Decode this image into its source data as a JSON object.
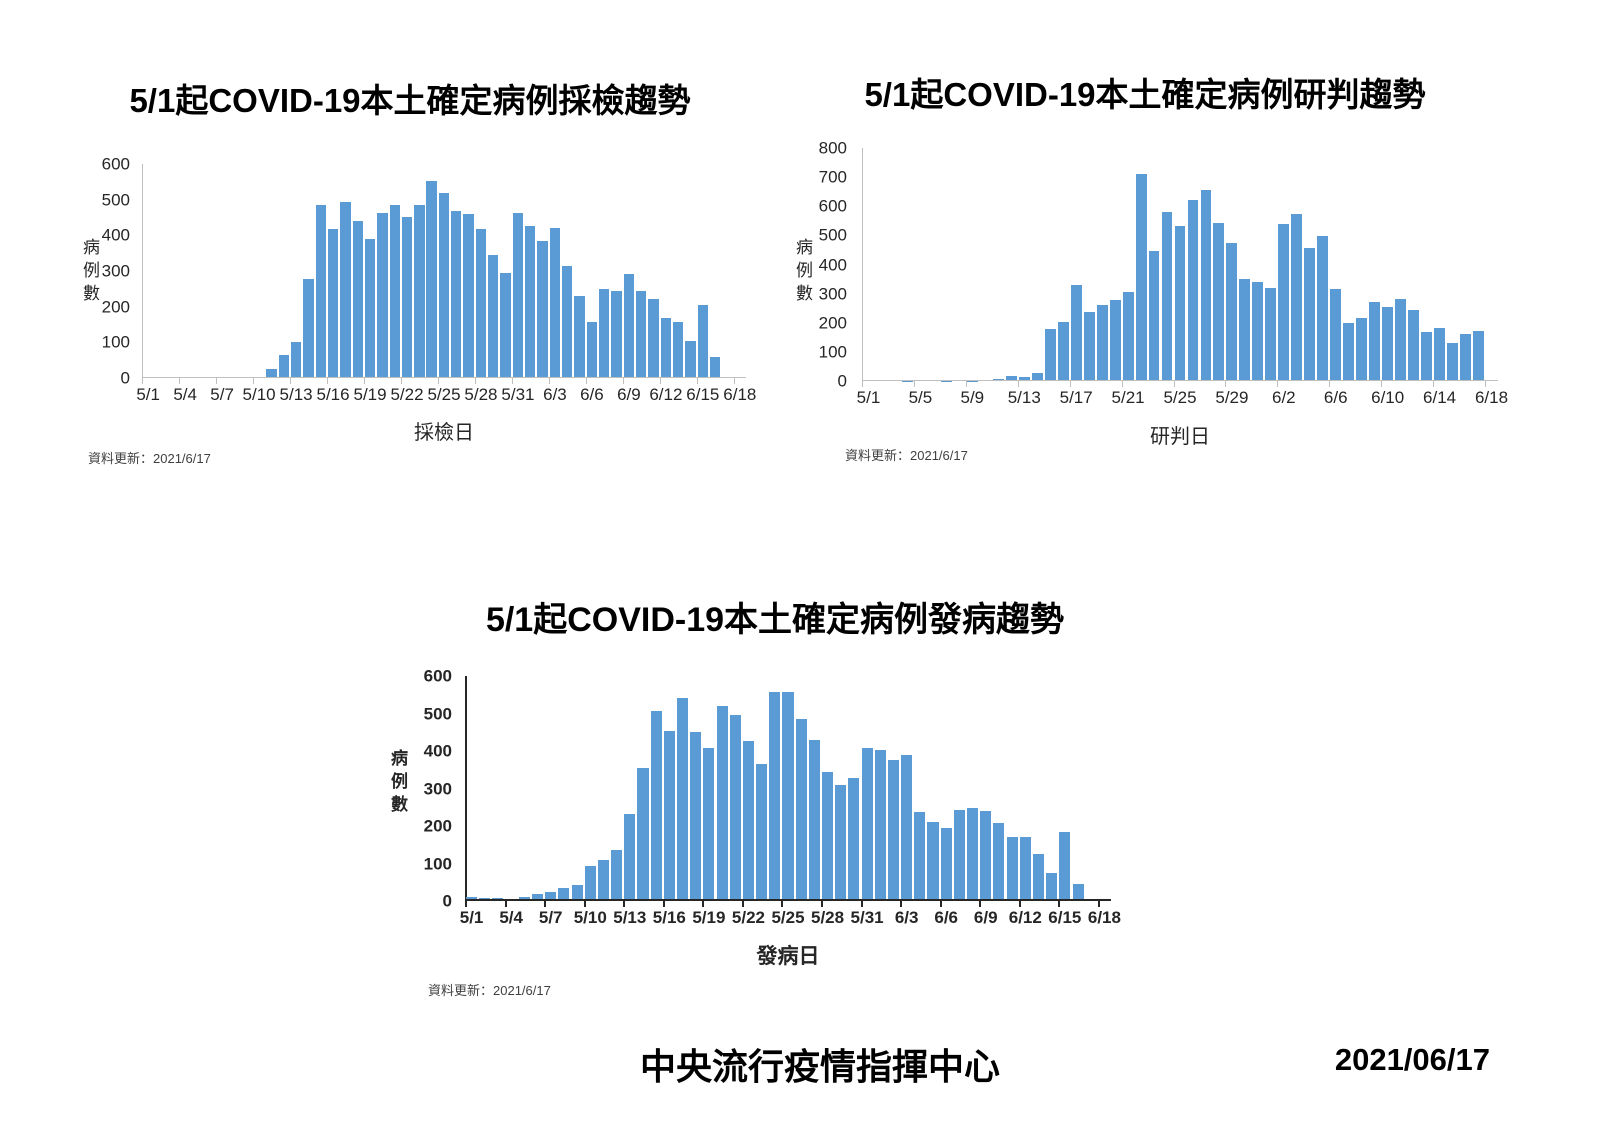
{
  "page": {
    "footer_org": "中央流行疫情指揮中心",
    "footer_date": "2021/06/17",
    "bar_color": "#5b9bd5"
  },
  "chart_data": [
    {
      "type": "bar",
      "title": "5/1起COVID-19本土確定病例採檢趨勢",
      "xlabel": "採檢日",
      "ylabel": "病例數",
      "footnote": "資料更新：2021/6/17",
      "ylim": [
        0,
        600
      ],
      "ytick_step": 100,
      "xtick_every": 3,
      "xtick_labels": [
        "5/1",
        "5/4",
        "5/7",
        "5/10",
        "5/13",
        "5/16",
        "5/19",
        "5/22",
        "5/25",
        "5/28",
        "5/31",
        "6/3",
        "6/6",
        "6/9",
        "6/12",
        "6/15",
        "6/18"
      ],
      "categories": [
        "5/1",
        "5/2",
        "5/3",
        "5/4",
        "5/5",
        "5/6",
        "5/7",
        "5/8",
        "5/9",
        "5/10",
        "5/11",
        "5/12",
        "5/13",
        "5/14",
        "5/15",
        "5/16",
        "5/17",
        "5/18",
        "5/19",
        "5/20",
        "5/21",
        "5/22",
        "5/23",
        "5/24",
        "5/25",
        "5/26",
        "5/27",
        "5/28",
        "5/29",
        "5/30",
        "5/31",
        "6/1",
        "6/2",
        "6/3",
        "6/4",
        "6/5",
        "6/6",
        "6/7",
        "6/8",
        "6/9",
        "6/10",
        "6/11",
        "6/12",
        "6/13",
        "6/14",
        "6/15",
        "6/16",
        "6/17",
        "6/18"
      ],
      "values": [
        0,
        0,
        0,
        0,
        0,
        0,
        0,
        0,
        0,
        0,
        25,
        65,
        100,
        278,
        485,
        418,
        494,
        440,
        390,
        462,
        485,
        452,
        484,
        553,
        518,
        468,
        461,
        417,
        345,
        294,
        464,
        426,
        385,
        421,
        313,
        230,
        158,
        250,
        243,
        291,
        243,
        222,
        168,
        157,
        103,
        205,
        60,
        0,
        0
      ]
    },
    {
      "type": "bar",
      "title": "5/1起COVID-19本土確定病例研判趨勢",
      "xlabel": "研判日",
      "ylabel": "病例數",
      "footnote": "資料更新：2021/6/17",
      "ylim": [
        0,
        800
      ],
      "ytick_step": 100,
      "xtick_every": 4,
      "xtick_labels": [
        "5/1",
        "5/5",
        "5/9",
        "5/13",
        "5/17",
        "5/21",
        "5/25",
        "5/29",
        "6/2",
        "6/6",
        "6/10",
        "6/14",
        "6/18"
      ],
      "categories": [
        "5/1",
        "5/2",
        "5/3",
        "5/4",
        "5/5",
        "5/6",
        "5/7",
        "5/8",
        "5/9",
        "5/10",
        "5/11",
        "5/12",
        "5/13",
        "5/14",
        "5/15",
        "5/16",
        "5/17",
        "5/18",
        "5/19",
        "5/20",
        "5/21",
        "5/22",
        "5/23",
        "5/24",
        "5/25",
        "5/26",
        "5/27",
        "5/28",
        "5/29",
        "5/30",
        "5/31",
        "6/1",
        "6/2",
        "6/3",
        "6/4",
        "6/5",
        "6/6",
        "6/7",
        "6/8",
        "6/9",
        "6/10",
        "6/11",
        "6/12",
        "6/13",
        "6/14",
        "6/15",
        "6/16",
        "6/17",
        "6/18"
      ],
      "values": [
        2,
        3,
        3,
        1,
        2,
        2,
        1,
        3,
        1,
        3,
        7,
        16,
        13,
        29,
        179,
        203,
        330,
        237,
        260,
        278,
        306,
        711,
        445,
        581,
        532,
        620,
        656,
        543,
        475,
        351,
        341,
        320,
        540,
        573,
        455,
        498,
        315,
        198,
        216,
        270,
        255,
        282,
        244,
        168,
        182,
        129,
        162,
        171,
        0
      ]
    },
    {
      "type": "bar",
      "title": "5/1起COVID-19本土確定病例發病趨勢",
      "xlabel": "發病日",
      "ylabel": "病例數",
      "footnote": "資料更新：2021/6/17",
      "ylim": [
        0,
        600
      ],
      "ytick_step": 100,
      "xtick_every": 3,
      "xtick_labels": [
        "5/1",
        "5/4",
        "5/7",
        "5/10",
        "5/13",
        "5/16",
        "5/19",
        "5/22",
        "5/25",
        "5/28",
        "5/31",
        "6/3",
        "6/6",
        "6/9",
        "6/12",
        "6/15",
        "6/18"
      ],
      "categories": [
        "5/1",
        "5/2",
        "5/3",
        "5/4",
        "5/5",
        "5/6",
        "5/7",
        "5/8",
        "5/9",
        "5/10",
        "5/11",
        "5/12",
        "5/13",
        "5/14",
        "5/15",
        "5/16",
        "5/17",
        "5/18",
        "5/19",
        "5/20",
        "5/21",
        "5/22",
        "5/23",
        "5/24",
        "5/25",
        "5/26",
        "5/27",
        "5/28",
        "5/29",
        "5/30",
        "5/31",
        "6/1",
        "6/2",
        "6/3",
        "6/4",
        "6/5",
        "6/6",
        "6/7",
        "6/8",
        "6/9",
        "6/10",
        "6/11",
        "6/12",
        "6/13",
        "6/14",
        "6/15",
        "6/16",
        "6/17",
        "6/18"
      ],
      "values": [
        12,
        8,
        9,
        2,
        10,
        20,
        24,
        36,
        42,
        93,
        109,
        136,
        233,
        354,
        506,
        453,
        542,
        451,
        408,
        521,
        497,
        427,
        366,
        558,
        558,
        486,
        430,
        345,
        310,
        328,
        407,
        404,
        376,
        390,
        237,
        210,
        194,
        243,
        248,
        241,
        207,
        172,
        172,
        126,
        74,
        184,
        45,
        0,
        0
      ]
    }
  ]
}
